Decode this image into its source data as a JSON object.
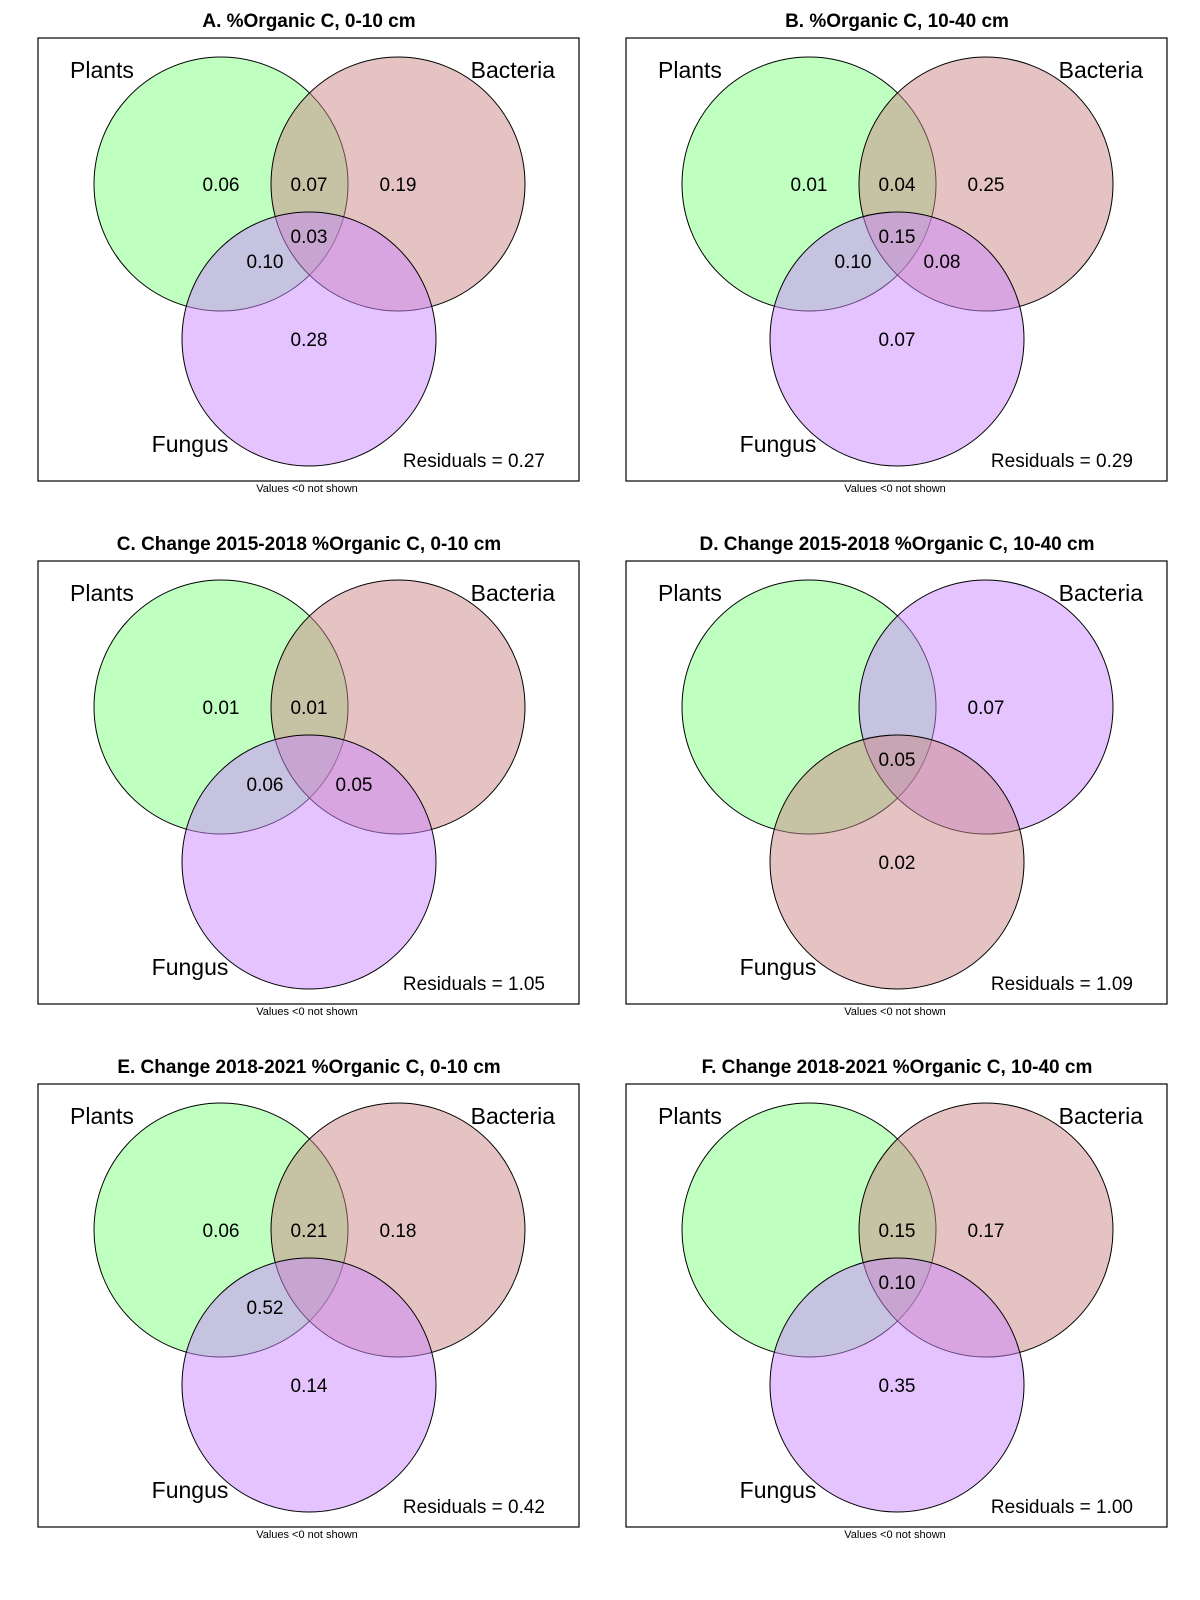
{
  "colors": {
    "green": "#80ff80",
    "rose": "#cc8888",
    "violet": "#cc88ff"
  },
  "panels": [
    {
      "title": "A. %Organic C, 0-10 cm",
      "sets": [
        {
          "label": "Plants",
          "color": "#80ff80"
        },
        {
          "label": "Bacteria",
          "color": "#cc8888"
        },
        {
          "label": "Fungus",
          "color": "#cc88ff"
        }
      ],
      "regions": {
        "p": "0.06",
        "pb": "0.07",
        "b": "0.19",
        "pbf": "0.03",
        "pf": "0.10",
        "bf": "",
        "f": "0.28"
      },
      "residuals": "Residuals = 0.27",
      "note": "Values <0 not shown"
    },
    {
      "title": "B. %Organic C, 10-40 cm",
      "sets": [
        {
          "label": "Plants",
          "color": "#80ff80"
        },
        {
          "label": "Bacteria",
          "color": "#cc8888"
        },
        {
          "label": "Fungus",
          "color": "#cc88ff"
        }
      ],
      "regions": {
        "p": "0.01",
        "pb": "0.04",
        "b": "0.25",
        "pbf": "0.15",
        "pf": "0.10",
        "bf": "0.08",
        "f": "0.07"
      },
      "residuals": "Residuals = 0.29",
      "note": "Values <0 not shown"
    },
    {
      "title": "C. Change 2015-2018 %Organic C, 0-10 cm",
      "sets": [
        {
          "label": "Plants",
          "color": "#80ff80"
        },
        {
          "label": "Bacteria",
          "color": "#cc8888"
        },
        {
          "label": "Fungus",
          "color": "#cc88ff"
        }
      ],
      "regions": {
        "p": "0.01",
        "pb": "0.01",
        "b": "",
        "pbf": "",
        "pf": "0.06",
        "bf": "0.05",
        "f": ""
      },
      "residuals": "Residuals = 1.05",
      "note": "Values <0 not shown"
    },
    {
      "title": "D. Change 2015-2018 %Organic C, 10-40 cm",
      "sets": [
        {
          "label": "Plants",
          "color": "#80ff80"
        },
        {
          "label": "Bacteria",
          "color": "#cc88ff"
        },
        {
          "label": "Fungus",
          "color": "#cc8888"
        }
      ],
      "regions": {
        "p": "",
        "pb": "",
        "b": "0.07",
        "pbf": "0.05",
        "pf": "",
        "bf": "",
        "f": "0.02"
      },
      "residuals": "Residuals = 1.09",
      "note": "Values <0 not shown"
    },
    {
      "title": "E. Change 2018-2021 %Organic C, 0-10 cm",
      "sets": [
        {
          "label": "Plants",
          "color": "#80ff80"
        },
        {
          "label": "Bacteria",
          "color": "#cc8888"
        },
        {
          "label": "Fungus",
          "color": "#cc88ff"
        }
      ],
      "regions": {
        "p": "0.06",
        "pb": "0.21",
        "b": "0.18",
        "pbf": "",
        "pf": "0.52",
        "bf": "",
        "f": "0.14"
      },
      "residuals": "Residuals = 0.42",
      "note": "Values <0 not shown"
    },
    {
      "title": "F. Change 2018-2021 %Organic C, 10-40 cm",
      "sets": [
        {
          "label": "Plants",
          "color": "#80ff80"
        },
        {
          "label": "Bacteria",
          "color": "#cc8888"
        },
        {
          "label": "Fungus",
          "color": "#cc88ff"
        }
      ],
      "regions": {
        "p": "",
        "pb": "0.15",
        "b": "0.17",
        "pbf": "0.10",
        "pf": "",
        "bf": "",
        "f": "0.35"
      },
      "residuals": "Residuals = 1.00",
      "note": "Values <0 not shown"
    }
  ]
}
